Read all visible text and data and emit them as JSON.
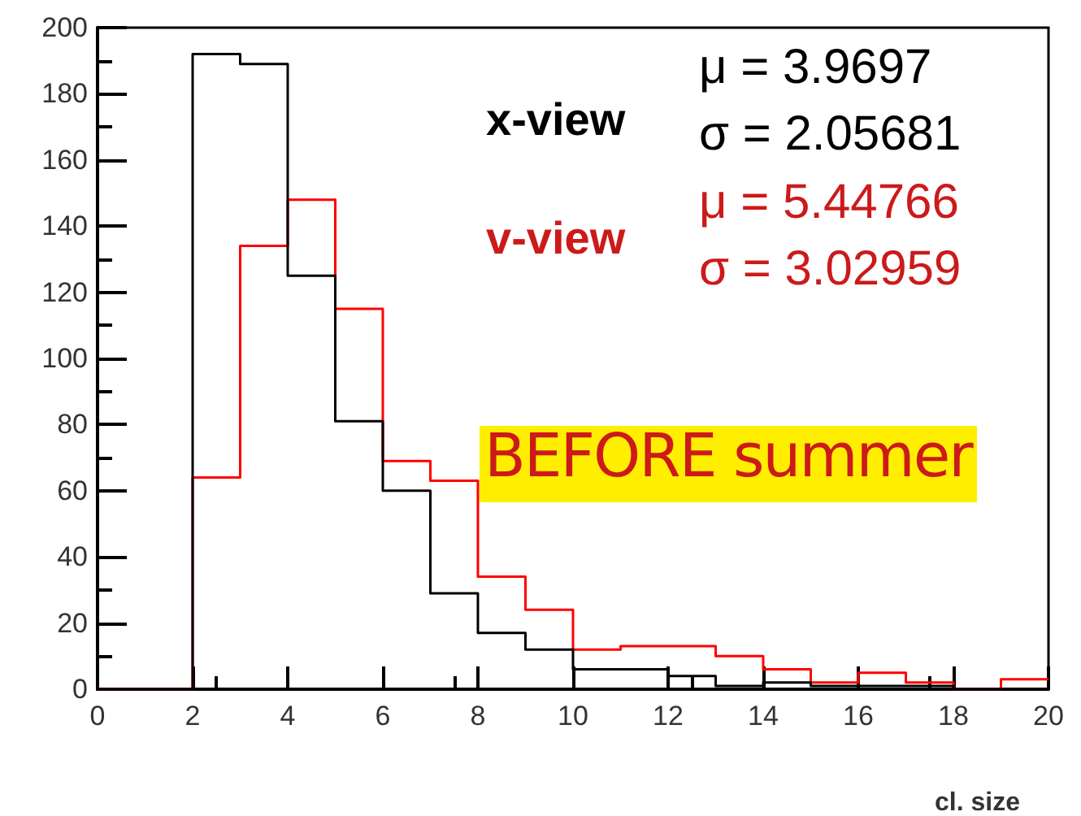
{
  "chart_data": {
    "type": "histogram",
    "xlabel": "cl. size",
    "bins": [
      0,
      1,
      2,
      3,
      4,
      5,
      6,
      7,
      8,
      9,
      10,
      11,
      12,
      13,
      14,
      15,
      16,
      17,
      18,
      19,
      20
    ],
    "series": [
      {
        "name": "x-view",
        "color": "#000000",
        "values": [
          0,
          0,
          192,
          189,
          125,
          81,
          60,
          29,
          17,
          12,
          6,
          6,
          4,
          1,
          2,
          1,
          1,
          1,
          0,
          0
        ]
      },
      {
        "name": "v-view",
        "color": "#ff0000",
        "values": [
          0,
          0,
          64,
          134,
          148,
          115,
          69,
          63,
          34,
          24,
          12,
          13,
          13,
          10,
          6,
          2,
          5,
          2,
          0,
          3
        ]
      }
    ],
    "annotations": [
      "μ = 3.9697",
      "σ = 2.05681",
      "μ = 5.44766",
      "σ = 3.02959",
      "BEFORE summer"
    ],
    "xlim": [
      0,
      20
    ],
    "xticks": [
      0,
      2,
      4,
      6,
      8,
      10,
      12,
      14,
      16,
      18,
      20
    ],
    "ylim": [
      0,
      200
    ],
    "yticks": [
      0,
      20,
      40,
      60,
      80,
      100,
      120,
      140,
      160,
      180,
      200
    ],
    "grid": false
  }
}
